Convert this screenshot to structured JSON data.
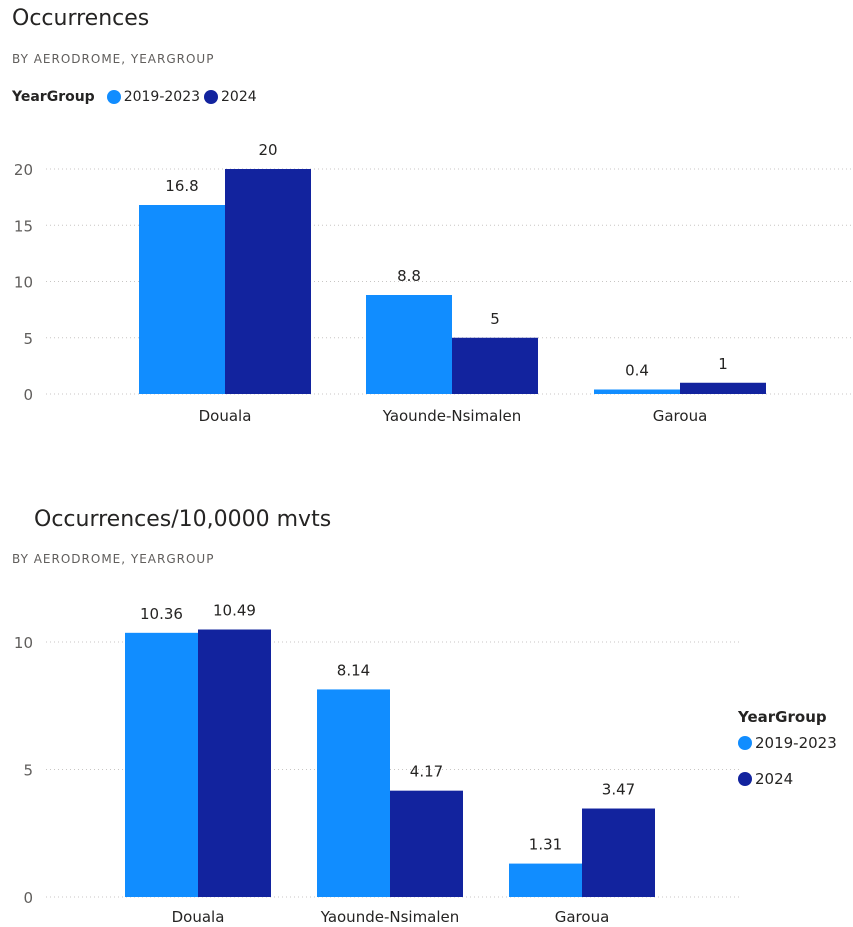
{
  "colors": {
    "series1": "#118DFF",
    "series2": "#12239E",
    "grid": "#c8c6c4",
    "text": "#252423",
    "subtext": "#605e5c"
  },
  "chart1": {
    "title": "Occurrences",
    "subtitle": "BY AERODROME, YEARGROUP",
    "legend_title": "YearGroup"
  },
  "chart2": {
    "title": "Occurrences/10,0000 mvts",
    "subtitle": "BY AERODROME, YEARGROUP",
    "legend_title": "YearGroup"
  },
  "chart_data": [
    {
      "type": "bar",
      "title": "Occurrences",
      "subtitle": "BY AERODROME, YEARGROUP",
      "categories": [
        "Douala",
        "Yaounde-Nsimalen",
        "Garoua"
      ],
      "series": [
        {
          "name": "2019-2023",
          "values": [
            16.8,
            8.8,
            0.4
          ],
          "labels": [
            "16.8",
            "8.8",
            "0.4"
          ]
        },
        {
          "name": "2024",
          "values": [
            20,
            5,
            1
          ],
          "labels": [
            "20",
            "5",
            "1"
          ]
        }
      ],
      "ylim": [
        0,
        20
      ],
      "yticks": [
        0,
        5,
        10,
        15,
        20
      ],
      "grid": true,
      "legend_position": "top-left"
    },
    {
      "type": "bar",
      "title": "Occurrences/10,0000 mvts",
      "subtitle": "BY AERODROME, YEARGROUP",
      "categories": [
        "Douala",
        "Yaounde-Nsimalen",
        "Garoua"
      ],
      "series": [
        {
          "name": "2019-2023",
          "values": [
            10.36,
            8.14,
            1.31
          ],
          "labels": [
            "10.36",
            "8.14",
            "1.31"
          ]
        },
        {
          "name": "2024",
          "values": [
            10.49,
            4.17,
            3.47
          ],
          "labels": [
            "10.49",
            "4.17",
            "3.47"
          ]
        }
      ],
      "ylim": [
        0,
        10
      ],
      "yticks": [
        0,
        5,
        10
      ],
      "grid": true,
      "legend_position": "right"
    }
  ]
}
